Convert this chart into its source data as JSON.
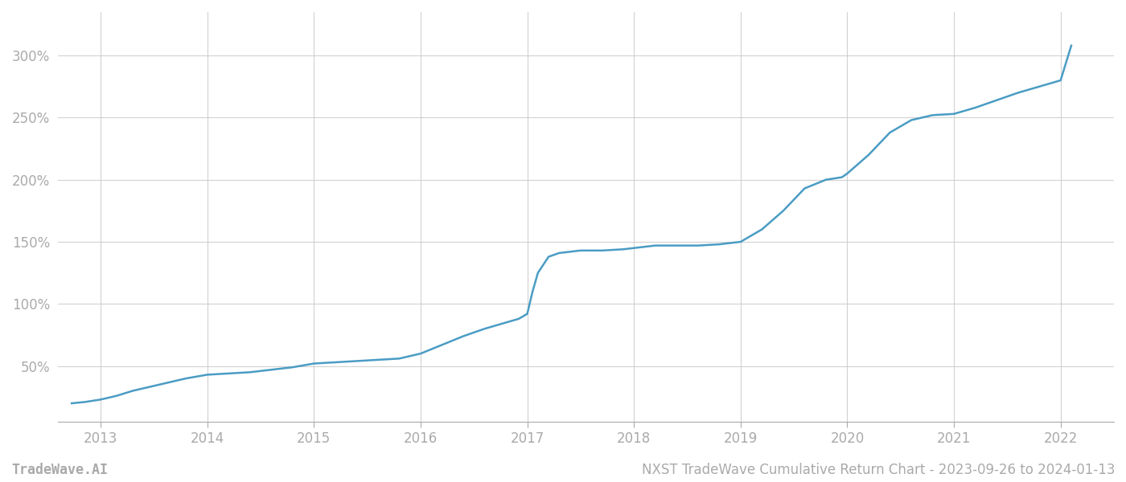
{
  "title": "NXST TradeWave Cumulative Return Chart - 2023-09-26 to 2024-01-13",
  "watermark": "TradeWave.AI",
  "x_years": [
    2013,
    2014,
    2015,
    2016,
    2017,
    2018,
    2019,
    2020,
    2021,
    2022
  ],
  "line_color": "#4a9cc4",
  "line_width": 1.8,
  "background_color": "#ffffff",
  "grid_color": "#cccccc",
  "yticks": [
    50,
    100,
    150,
    200,
    250,
    300
  ],
  "ylim": [
    5,
    335
  ],
  "xlim": [
    2012.6,
    2022.5
  ],
  "data_x": [
    2012.73,
    2012.85,
    2013.0,
    2013.15,
    2013.3,
    2013.5,
    2013.65,
    2013.8,
    2014.0,
    2014.2,
    2014.4,
    2014.6,
    2014.8,
    2015.0,
    2015.2,
    2015.4,
    2015.6,
    2015.8,
    2016.0,
    2016.2,
    2016.4,
    2016.6,
    2016.8,
    2016.92,
    2017.0,
    2017.05,
    2017.1,
    2017.2,
    2017.3,
    2017.5,
    2017.7,
    2017.9,
    2018.0,
    2018.1,
    2018.2,
    2018.4,
    2018.6,
    2018.8,
    2019.0,
    2019.2,
    2019.4,
    2019.6,
    2019.8,
    2019.95,
    2020.0,
    2020.2,
    2020.4,
    2020.6,
    2020.8,
    2021.0,
    2021.2,
    2021.4,
    2021.6,
    2021.8,
    2022.0,
    2022.1
  ],
  "data_y": [
    20,
    21,
    23,
    26,
    30,
    34,
    37,
    40,
    43,
    44,
    45,
    47,
    49,
    52,
    53,
    54,
    55,
    56,
    60,
    67,
    74,
    80,
    85,
    88,
    92,
    110,
    125,
    138,
    141,
    143,
    143,
    144,
    145,
    146,
    147,
    147,
    147,
    148,
    150,
    160,
    175,
    193,
    200,
    202,
    205,
    220,
    238,
    248,
    252,
    253,
    258,
    264,
    270,
    275,
    280,
    308
  ]
}
